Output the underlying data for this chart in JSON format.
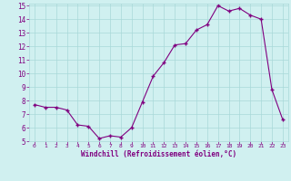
{
  "x": [
    0,
    1,
    2,
    3,
    4,
    5,
    6,
    7,
    8,
    9,
    10,
    11,
    12,
    13,
    14,
    15,
    16,
    17,
    18,
    19,
    20,
    21,
    22,
    23
  ],
  "y": [
    7.7,
    7.5,
    7.5,
    7.3,
    6.2,
    6.1,
    5.2,
    5.4,
    5.3,
    6.0,
    7.9,
    9.8,
    10.8,
    12.1,
    12.2,
    13.2,
    13.6,
    15.0,
    14.6,
    14.8,
    14.3,
    14.0,
    8.8,
    6.6
  ],
  "xlabel": "Windchill (Refroidissement éolien,°C)",
  "ylim": [
    5,
    15
  ],
  "xlim": [
    -0.5,
    23.5
  ],
  "yticks": [
    5,
    6,
    7,
    8,
    9,
    10,
    11,
    12,
    13,
    14,
    15
  ],
  "xticks": [
    0,
    1,
    2,
    3,
    4,
    5,
    6,
    7,
    8,
    9,
    10,
    11,
    12,
    13,
    14,
    15,
    16,
    17,
    18,
    19,
    20,
    21,
    22,
    23
  ],
  "line_color": "#800080",
  "marker_color": "#800080",
  "bg_color": "#d0f0f0",
  "grid_color": "#a8d8d8",
  "font_color": "#800080"
}
